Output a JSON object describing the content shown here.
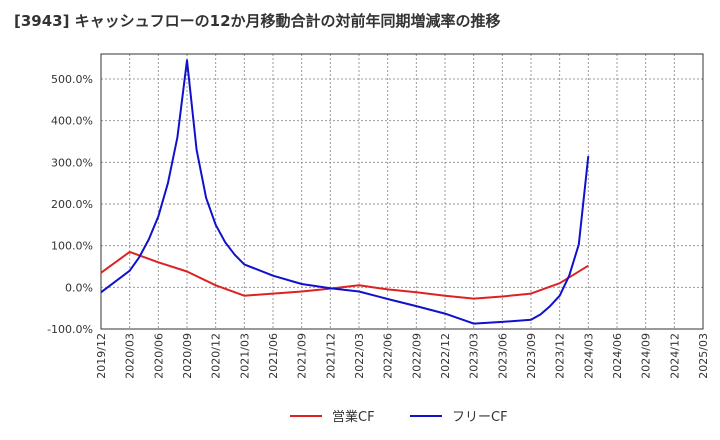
{
  "chart_data": {
    "type": "line",
    "title": "[3943]  キャッシュフローの12か月移動合計の対前年同期増減率の推移",
    "xlabel": "",
    "ylabel": "",
    "x_ticks": [
      "2019/12",
      "2020/03",
      "2020/06",
      "2020/09",
      "2020/12",
      "2021/03",
      "2021/06",
      "2021/09",
      "2021/12",
      "2022/03",
      "2022/06",
      "2022/09",
      "2022/12",
      "2023/03",
      "2023/06",
      "2023/09",
      "2023/12",
      "2024/03",
      "2024/06",
      "2024/09",
      "2024/12",
      "2025/03"
    ],
    "y_ticks": [
      500,
      400,
      300,
      200,
      100,
      0,
      -100
    ],
    "y_tick_labels": [
      "500.0%",
      "400.0%",
      "300.0%",
      "200.0%",
      "100.0%",
      "0.0%",
      "-100.0%"
    ],
    "ylim": [
      -100,
      560
    ],
    "grid": true,
    "legend_position": "bottom",
    "series": [
      {
        "name": "営業CF",
        "color": "#dd2222",
        "points": [
          [
            "2019/12",
            35
          ],
          [
            "2020/03",
            85
          ],
          [
            "2020/06",
            60
          ],
          [
            "2020/09",
            38
          ],
          [
            "2020/12",
            5
          ],
          [
            "2021/03",
            -20
          ],
          [
            "2021/06",
            -15
          ],
          [
            "2021/09",
            -10
          ],
          [
            "2021/12",
            -3
          ],
          [
            "2022/03",
            5
          ],
          [
            "2022/06",
            -5
          ],
          [
            "2022/09",
            -12
          ],
          [
            "2022/12",
            -20
          ],
          [
            "2023/03",
            -27
          ],
          [
            "2023/06",
            -22
          ],
          [
            "2023/09",
            -15
          ],
          [
            "2023/12",
            10
          ],
          [
            "2024/03",
            52
          ]
        ]
      },
      {
        "name": "フリーCF",
        "color": "#1111cc",
        "points": [
          [
            "2019/12",
            -12
          ],
          [
            "2020/03",
            40
          ],
          [
            "2020/04",
            72
          ],
          [
            "2020/05",
            115
          ],
          [
            "2020/06",
            170
          ],
          [
            "2020/07",
            250
          ],
          [
            "2020/08",
            360
          ],
          [
            "2020/09",
            545
          ],
          [
            "2020/10",
            330
          ],
          [
            "2020/11",
            215
          ],
          [
            "2020/12",
            150
          ],
          [
            "2021/01",
            108
          ],
          [
            "2021/02",
            78
          ],
          [
            "2021/03",
            55
          ],
          [
            "2021/06",
            28
          ],
          [
            "2021/09",
            8
          ],
          [
            "2021/12",
            -2
          ],
          [
            "2022/03",
            -10
          ],
          [
            "2022/06",
            -28
          ],
          [
            "2022/09",
            -45
          ],
          [
            "2022/12",
            -63
          ],
          [
            "2023/03",
            -87
          ],
          [
            "2023/06",
            -83
          ],
          [
            "2023/09",
            -78
          ],
          [
            "2023/10",
            -65
          ],
          [
            "2023/11",
            -45
          ],
          [
            "2023/12",
            -20
          ],
          [
            "2024/01",
            28
          ],
          [
            "2024/02",
            103
          ],
          [
            "2024/03",
            315
          ]
        ]
      }
    ]
  }
}
